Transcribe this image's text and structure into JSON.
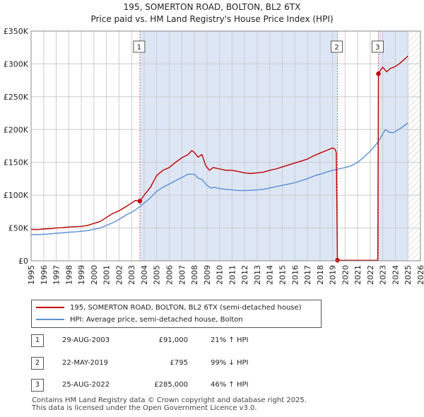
{
  "title_line1": "195, SOMERTON ROAD, BOLTON, BL2 6TX",
  "title_line2": "Price paid vs. HM Land Registry's House Price Index (HPI)",
  "colors": {
    "price": "#c00000",
    "hpi": "#5b8ed6",
    "shade": "#dde6f5",
    "grid": "#cccccc",
    "marker_line": "#e06060"
  },
  "chart_data": {
    "type": "line",
    "title": "Price paid vs. HM Land Registry's House Price Index (HPI)",
    "xlabel": "",
    "ylabel": "",
    "xlim": [
      1995,
      2026
    ],
    "ylim": [
      0,
      350000
    ],
    "y_ticks": [
      0,
      50000,
      100000,
      150000,
      200000,
      250000,
      300000,
      350000
    ],
    "y_tick_labels": [
      "£0",
      "£50K",
      "£100K",
      "£150K",
      "£200K",
      "£250K",
      "£300K",
      "£350K"
    ],
    "x_ticks": [
      1995,
      1996,
      1997,
      1998,
      1999,
      2000,
      2001,
      2002,
      2003,
      2004,
      2005,
      2006,
      2007,
      2008,
      2009,
      2010,
      2011,
      2012,
      2013,
      2014,
      2015,
      2016,
      2017,
      2018,
      2019,
      2020,
      2021,
      2022,
      2023,
      2024,
      2025,
      2026
    ],
    "x_tick_labels": [
      "1995",
      "1996",
      "1997",
      "1998",
      "1999",
      "2000",
      "2001",
      "2002",
      "2003",
      "2004",
      "2005",
      "2006",
      "2007",
      "2008",
      "2009",
      "2010",
      "2011",
      "2012",
      "2013",
      "2014",
      "2015",
      "2016",
      "2017",
      "2018",
      "2019",
      "2020",
      "2021",
      "2022",
      "2023",
      "2024",
      "2025",
      "2026"
    ],
    "shaded_ranges": [
      [
        2003.66,
        2019.39
      ],
      [
        2022.65,
        2025.05
      ]
    ],
    "hatched_range": [
      2025.05,
      2026
    ],
    "series": [
      {
        "name": "195, SOMERTON ROAD, BOLTON, BL2 6TX (semi-detached house)",
        "x": [
          1995.0,
          1995.5,
          1996.0,
          1996.5,
          1997.0,
          1997.5,
          1998.0,
          1998.5,
          1999.0,
          1999.5,
          2000.0,
          2000.5,
          2001.0,
          2001.5,
          2002.0,
          2002.5,
          2003.0,
          2003.3,
          2003.66,
          2004.0,
          2004.5,
          2005.0,
          2005.5,
          2006.0,
          2006.5,
          2007.0,
          2007.5,
          2007.8,
          2008.0,
          2008.3,
          2008.6,
          2008.9,
          2009.2,
          2009.5,
          2010.0,
          2010.5,
          2011.0,
          2011.5,
          2012.0,
          2012.5,
          2013.0,
          2013.5,
          2014.0,
          2014.5,
          2015.0,
          2015.5,
          2016.0,
          2016.5,
          2017.0,
          2017.5,
          2018.0,
          2018.5,
          2019.0,
          2019.2,
          2019.3,
          2019.39,
          2019.6,
          2020.0,
          2021.0,
          2022.0,
          2022.6,
          2022.65,
          2022.8,
          2023.0,
          2023.3,
          2023.6,
          2024.0,
          2024.3,
          2024.6,
          2024.9,
          2025.0
        ],
        "y": [
          48000,
          47500,
          48500,
          49000,
          50000,
          50500,
          51500,
          52000,
          52500,
          54000,
          57000,
          60000,
          66000,
          72000,
          76000,
          82000,
          88000,
          92000,
          91000,
          100000,
          112000,
          130000,
          138000,
          142000,
          150000,
          157000,
          162000,
          168000,
          165000,
          158000,
          162000,
          145000,
          138000,
          142000,
          140000,
          138000,
          138000,
          136000,
          134000,
          133000,
          134000,
          135000,
          138000,
          140000,
          143000,
          146000,
          149000,
          152000,
          155000,
          160000,
          164000,
          168000,
          172000,
          170000,
          165000,
          795,
          795,
          795,
          795,
          795,
          795,
          285000,
          290000,
          295000,
          288000,
          293000,
          296000,
          300000,
          305000,
          310000,
          312000
        ]
      },
      {
        "name": "HPI: Average price, semi-detached house, Bolton",
        "x": [
          1995.0,
          1995.5,
          1996.0,
          1996.5,
          1997.0,
          1997.5,
          1998.0,
          1998.5,
          1999.0,
          1999.5,
          2000.0,
          2000.5,
          2001.0,
          2001.5,
          2002.0,
          2002.5,
          2003.0,
          2003.5,
          2004.0,
          2004.5,
          2005.0,
          2005.5,
          2006.0,
          2006.5,
          2007.0,
          2007.5,
          2008.0,
          2008.3,
          2008.6,
          2009.0,
          2009.3,
          2009.6,
          2010.0,
          2010.5,
          2011.0,
          2011.5,
          2012.0,
          2012.5,
          2013.0,
          2013.5,
          2014.0,
          2014.5,
          2015.0,
          2015.5,
          2016.0,
          2016.5,
          2017.0,
          2017.5,
          2018.0,
          2018.5,
          2019.0,
          2019.5,
          2020.0,
          2020.5,
          2021.0,
          2021.5,
          2022.0,
          2022.5,
          2022.9,
          2023.2,
          2023.5,
          2023.8,
          2024.0,
          2024.5,
          2025.0
        ],
        "y": [
          40000,
          39800,
          40500,
          41000,
          42000,
          42500,
          43500,
          44000,
          45000,
          46000,
          48000,
          50000,
          54000,
          58000,
          63000,
          69000,
          74000,
          80000,
          88000,
          96000,
          106000,
          112000,
          117000,
          122000,
          127000,
          132000,
          132000,
          126000,
          124000,
          115000,
          111000,
          112000,
          110000,
          109000,
          108000,
          107000,
          107000,
          107500,
          108000,
          109000,
          111000,
          113000,
          115000,
          117000,
          119000,
          122000,
          125000,
          129000,
          132000,
          135000,
          138000,
          140000,
          142000,
          145000,
          150000,
          158000,
          167000,
          178000,
          190000,
          200000,
          196000,
          195000,
          197000,
          203000,
          210000
        ]
      }
    ],
    "sales": [
      {
        "label": "1",
        "year": 2003.66,
        "price": 91000
      },
      {
        "label": "2",
        "year": 2019.39,
        "price": 795
      },
      {
        "label": "3",
        "year": 2022.65,
        "price": 285000
      }
    ]
  },
  "legend": {
    "price_label": "195, SOMERTON ROAD, BOLTON, BL2 6TX (semi-detached house)",
    "hpi_label": "HPI: Average price, semi-detached house, Bolton"
  },
  "sales_table": [
    {
      "num": "1",
      "date": "29-AUG-2003",
      "price": "£91,000",
      "hpi": "21% ↑ HPI"
    },
    {
      "num": "2",
      "date": "22-MAY-2019",
      "price": "£795",
      "hpi": "99% ↓ HPI"
    },
    {
      "num": "3",
      "date": "25-AUG-2022",
      "price": "£285,000",
      "hpi": "46% ↑ HPI"
    }
  ],
  "footer_line1": "Contains HM Land Registry data © Crown copyright and database right 2025.",
  "footer_line2": "This data is licensed under the Open Government Licence v3.0."
}
